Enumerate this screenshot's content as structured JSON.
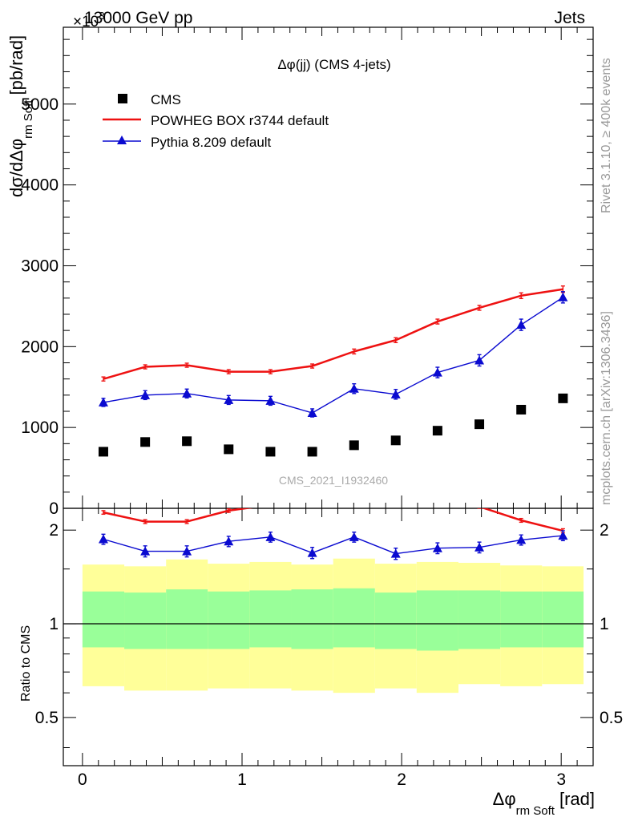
{
  "header": {
    "energy_label": "13000 GeV pp",
    "category_label": "Jets",
    "exponent_label": "×10",
    "exponent_value": "3"
  },
  "sidebar": {
    "rivet_label": "Rivet 3.1.10, ≥ 400k events",
    "mcplots_label": "mcplots.cern.ch [arXiv:1306.3436]"
  },
  "watermark": "CMS_2021_I1932460",
  "colors": {
    "cms": "#000000",
    "powheg": "#ee1111",
    "pythia": "#0a0ad0",
    "band_inner": "#99ff99",
    "band_outer": "#ffff99"
  },
  "chart_data": [
    {
      "type": "scatter",
      "title": "Δφ(jj) (CMS 4-jets)",
      "ylabel": "dσ/dΔφ_rm Soft [pb/rad]",
      "ylabel_main": "dσ/dΔφ",
      "ylabel_sub": "rm Soft",
      "ylabel_unit": "[pb/rad]",
      "xlim": [
        -0.12,
        3.2
      ],
      "ylim": [
        0,
        5950
      ],
      "y_ticks": [
        0,
        1000,
        2000,
        3000,
        4000,
        5000
      ],
      "y_tick_labels": [
        "0",
        "1000",
        "2000",
        "3000",
        "4000",
        "5000"
      ],
      "legend_position": "top-left",
      "x": [
        0.131,
        0.393,
        0.654,
        0.916,
        1.178,
        1.44,
        1.702,
        1.963,
        2.225,
        2.487,
        2.749,
        3.011
      ],
      "series": [
        {
          "name": "CMS",
          "style": "markers",
          "values": [
            700,
            820,
            830,
            730,
            700,
            700,
            780,
            840,
            960,
            1040,
            1220,
            1360
          ],
          "errors": [
            0,
            0,
            0,
            0,
            0,
            0,
            0,
            0,
            0,
            0,
            0,
            0
          ]
        },
        {
          "name": "POWHEG BOX r3744 default",
          "style": "line",
          "values": [
            1600,
            1750,
            1770,
            1690,
            1690,
            1760,
            1940,
            2080,
            2310,
            2480,
            2630,
            2710
          ],
          "errors": [
            25,
            25,
            25,
            25,
            25,
            25,
            30,
            30,
            30,
            30,
            35,
            40
          ]
        },
        {
          "name": "Pythia 8.209 default",
          "style": "line-markers",
          "values": [
            1310,
            1400,
            1420,
            1340,
            1330,
            1180,
            1480,
            1410,
            1680,
            1830,
            2270,
            2610
          ],
          "errors": [
            50,
            55,
            55,
            55,
            55,
            50,
            60,
            60,
            65,
            70,
            70,
            70
          ]
        }
      ]
    },
    {
      "type": "line",
      "ylabel": "Ratio to CMS",
      "xlabel": "Δφ_rm Soft [rad]",
      "xlabel_main": "Δφ",
      "xlabel_sub": "rm Soft",
      "xlabel_unit": "[rad]",
      "xlim": [
        -0.12,
        3.2
      ],
      "ylim": [
        0.35,
        2.35
      ],
      "y_scale": "log",
      "x_ticks": [
        0,
        1,
        2,
        3
      ],
      "x_tick_labels": [
        "0",
        "1",
        "2",
        "3"
      ],
      "y_ticks": [
        0.5,
        1,
        2
      ],
      "y_tick_labels": [
        "0.5",
        "1",
        "2"
      ],
      "x": [
        0.131,
        0.393,
        0.654,
        0.916,
        1.178,
        1.44,
        1.702,
        1.963,
        2.225,
        2.487,
        2.749,
        3.011
      ],
      "bin_edges": [
        0.0,
        0.262,
        0.524,
        0.785,
        1.047,
        1.309,
        1.571,
        1.833,
        2.094,
        2.356,
        2.618,
        2.88,
        3.14
      ],
      "bands": {
        "inner_low": [
          0.84,
          0.83,
          0.83,
          0.83,
          0.84,
          0.83,
          0.84,
          0.83,
          0.82,
          0.83,
          0.84,
          0.84
        ],
        "inner_high": [
          1.27,
          1.26,
          1.29,
          1.27,
          1.28,
          1.29,
          1.3,
          1.26,
          1.28,
          1.28,
          1.27,
          1.27
        ],
        "outer_low": [
          0.63,
          0.61,
          0.61,
          0.62,
          0.62,
          0.61,
          0.6,
          0.62,
          0.6,
          0.64,
          0.63,
          0.64
        ],
        "outer_high": [
          1.55,
          1.53,
          1.61,
          1.56,
          1.58,
          1.55,
          1.62,
          1.56,
          1.58,
          1.57,
          1.54,
          1.53
        ]
      },
      "series": [
        {
          "name": "POWHEG BOX r3744 default",
          "values": [
            2.28,
            2.13,
            2.13,
            2.31,
            2.41,
            2.51,
            2.49,
            2.48,
            2.41,
            2.38,
            2.15,
            1.99
          ],
          "errors": [
            0.03,
            0.03,
            0.03,
            0.03,
            0.03,
            0.03,
            0.03,
            0.03,
            0.03,
            0.03,
            0.03,
            0.03
          ]
        },
        {
          "name": "Pythia 8.209 default",
          "values": [
            1.87,
            1.71,
            1.71,
            1.84,
            1.9,
            1.69,
            1.9,
            1.68,
            1.75,
            1.76,
            1.86,
            1.92
          ],
          "errors": [
            0.07,
            0.07,
            0.07,
            0.07,
            0.07,
            0.07,
            0.07,
            0.07,
            0.07,
            0.07,
            0.07,
            0.07
          ]
        }
      ]
    }
  ]
}
